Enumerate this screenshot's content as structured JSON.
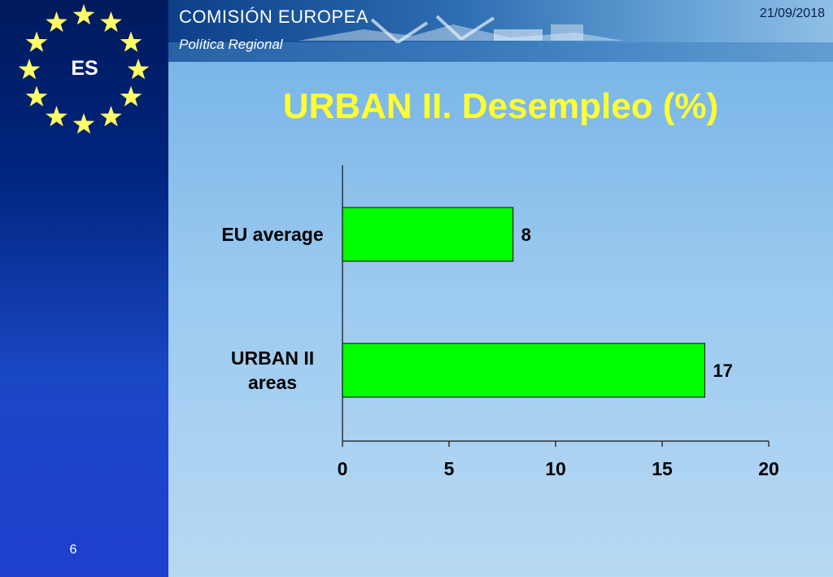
{
  "header": {
    "organization": "COMISIÓN EUROPEA",
    "directorate": "Política Regional",
    "date": "21/09/2018"
  },
  "sidebar": {
    "country_code": "ES",
    "page_number": "6"
  },
  "slide": {
    "title": "URBAN II. Desempleo (%)"
  },
  "colors": {
    "bar": "#00ff00",
    "title": "#ffff33",
    "sidebar": "#00257f"
  },
  "chart_data": {
    "type": "bar",
    "orientation": "horizontal",
    "categories": [
      "EU average",
      "URBAN II areas"
    ],
    "values": [
      8,
      17
    ],
    "data_labels": [
      "8",
      "17"
    ],
    "xlim": [
      0,
      20
    ],
    "x_ticks": [
      "0",
      "5",
      "10",
      "15",
      "20"
    ],
    "grid": false,
    "legend": "none"
  }
}
